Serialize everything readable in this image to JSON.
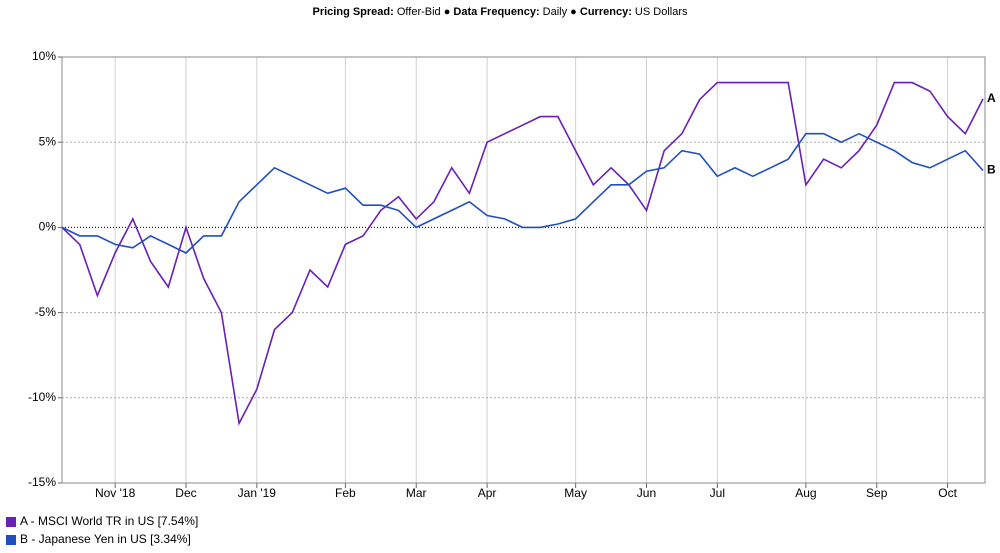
{
  "chart_data": {
    "type": "line",
    "title_parts": [
      "Pricing Spread:",
      " Offer-Bid ● ",
      "Data Frequency:",
      " Daily ● ",
      "Currency:",
      " US Dollars"
    ],
    "categories": [
      null,
      null,
      null,
      "Nov '18",
      null,
      null,
      null,
      "Dec",
      null,
      null,
      null,
      "Jan '19",
      null,
      null,
      null,
      null,
      "Feb",
      null,
      null,
      null,
      "Mar",
      null,
      null,
      null,
      "Apr",
      null,
      null,
      null,
      null,
      "May",
      null,
      null,
      null,
      "Jun",
      null,
      null,
      null,
      "Jul",
      null,
      null,
      null,
      null,
      "Aug",
      null,
      null,
      null,
      "Sep",
      null,
      null,
      null,
      "Oct",
      null,
      null
    ],
    "series": [
      {
        "name": "A - MSCI World TR in US [7.54%]",
        "end_label": "A",
        "color": "#6a1fb5",
        "values": [
          0,
          -1.0,
          -4.0,
          -1.5,
          0.5,
          -2,
          -3.5,
          0,
          -3,
          -5,
          -11.5,
          -9.5,
          -6,
          -5,
          -2.5,
          -3.5,
          -1,
          -0.5,
          1.0,
          1.8,
          0.5,
          1.5,
          3.5,
          2.0,
          5.0,
          5.5,
          6,
          6.5,
          6.5,
          4.5,
          2.5,
          3.5,
          2.5,
          1.0,
          4.5,
          5.5,
          7.5,
          8.5,
          8.5,
          8.5,
          8.5,
          8.5,
          2.5,
          4,
          3.5,
          4.5,
          6,
          8.5,
          8.5,
          8,
          6.5,
          5.5,
          7.54
        ]
      },
      {
        "name": "B - Japanese Yen in US [3.34%]",
        "end_label": "B",
        "color": "#1f4fbf",
        "values": [
          0,
          -0.5,
          -0.5,
          -1.0,
          -1.2,
          -0.5,
          -1.0,
          -1.5,
          -0.5,
          -0.5,
          1.5,
          2.5,
          3.5,
          3.0,
          2.5,
          2.0,
          2.3,
          1.3,
          1.3,
          1.0,
          0.0,
          0.5,
          1.0,
          1.5,
          0.7,
          0.5,
          0.0,
          0.0,
          0.2,
          0.5,
          1.5,
          2.5,
          2.5,
          3.3,
          3.5,
          4.5,
          4.3,
          3.0,
          3.5,
          3.0,
          3.5,
          4.0,
          5.5,
          5.5,
          5.0,
          5.5,
          5.0,
          4.5,
          3.8,
          3.5,
          4.0,
          4.5,
          3.34
        ]
      }
    ],
    "ylim": [
      -15,
      10
    ],
    "yticks": [
      {
        "value": -15,
        "label": "-15%"
      },
      {
        "value": -10,
        "label": "-10%"
      },
      {
        "value": -5,
        "label": "-5%"
      },
      {
        "value": 0,
        "label": "0%"
      },
      {
        "value": 5,
        "label": "5%"
      },
      {
        "value": 10,
        "label": "10%"
      }
    ],
    "grid": true
  }
}
